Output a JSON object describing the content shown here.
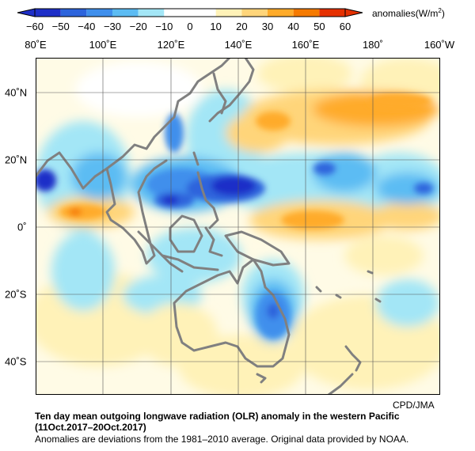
{
  "colorbar": {
    "ticks": [
      "−60",
      "−50",
      "−40",
      "−30",
      "−20",
      "−10",
      "0",
      "10",
      "20",
      "30",
      "40",
      "50",
      "60"
    ],
    "colors": [
      "#1e2fc8",
      "#2d64dc",
      "#3f8fec",
      "#5cbcf3",
      "#a3e6f6",
      "#ffffff",
      "#ffffff",
      "#fff2b8",
      "#ffd57a",
      "#ffab2a",
      "#f57a00",
      "#e53000"
    ],
    "unit_prefix": "anomalies(W/m",
    "unit_sup": "2",
    "unit_suffix": ")"
  },
  "axes": {
    "lon_labels": [
      "80˚E",
      "100˚E",
      "120˚E",
      "140˚E",
      "160˚E",
      "180˚",
      "160˚W"
    ],
    "lat_labels": [
      "40˚N",
      "20˚N",
      "0˚",
      "20˚S",
      "40˚S"
    ]
  },
  "map": {
    "domain": {
      "lon_min": 80,
      "lon_max": 202,
      "lat_min": -50,
      "lat_max": 50
    },
    "coastline_color": "#808080",
    "grid_color": "#555555"
  },
  "footer": {
    "credit": "CPD/JMA",
    "title": "Ten day mean outgoing longwave radiation (OLR) anomaly in the western Pacific",
    "period": "(11Oct.2017–20Oct.2017)",
    "note": "Anomalies are deviations from the 1981–2010 average. Original data provided by NOAA."
  }
}
